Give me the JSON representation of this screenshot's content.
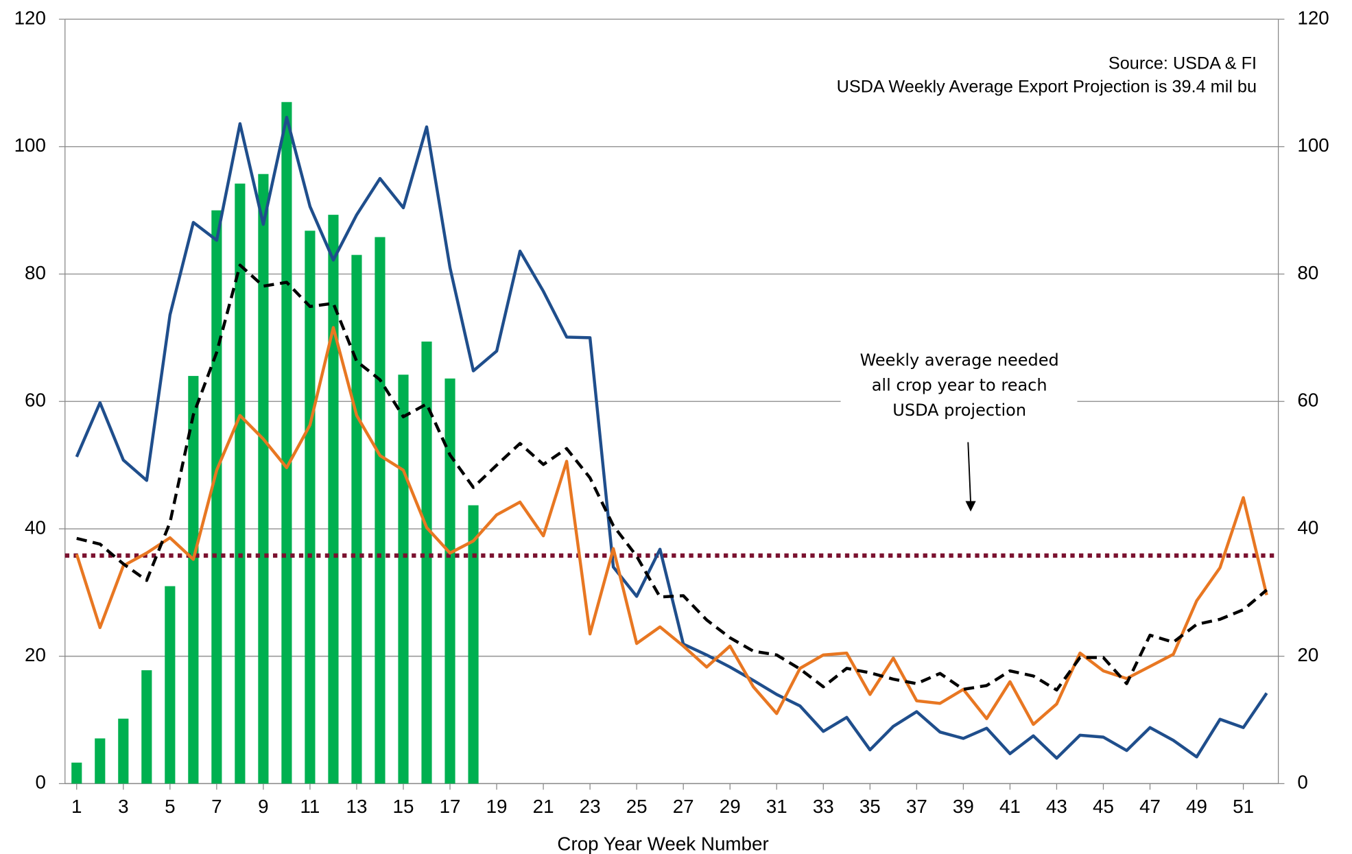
{
  "chart_data": {
    "type": "combo",
    "x_axis_label": "Crop Year Week Number",
    "source": "Source: USDA & FI",
    "note": "USDA Weekly Average Export Projection is 39.4 mil bu",
    "annotation_lines": [
      "Weekly average needed",
      "all crop year to reach",
      "USDA projection"
    ],
    "xlim": [
      0.5,
      52.5
    ],
    "xticks": [
      1,
      3,
      5,
      7,
      9,
      11,
      13,
      15,
      17,
      19,
      21,
      23,
      25,
      27,
      29,
      31,
      33,
      35,
      37,
      39,
      41,
      43,
      45,
      47,
      49,
      51
    ],
    "ylim": [
      0,
      120
    ],
    "yticks": [
      0,
      20,
      40,
      60,
      80,
      100,
      120
    ],
    "y2lim": [
      0,
      120
    ],
    "y2ticks": [
      0,
      20,
      40,
      60,
      80,
      100,
      120
    ],
    "grid": true,
    "reference_line": {
      "value": 35.8,
      "color": "#7b1230"
    },
    "series": [
      {
        "type": "bar",
        "color": "#00b050",
        "x": [
          1,
          2,
          3,
          4,
          5,
          6,
          7,
          8,
          9,
          10,
          11,
          12,
          13,
          14,
          15,
          16,
          17,
          18
        ],
        "values": [
          3.3,
          7.1,
          10.2,
          17.8,
          31,
          64,
          90,
          94.2,
          95.7,
          107,
          86.8,
          89.3,
          83,
          85.8,
          64.2,
          69.4,
          63.6,
          43.7
        ]
      },
      {
        "type": "line",
        "color": "#1f4e8c",
        "x": [
          1,
          2,
          3,
          4,
          5,
          6,
          7,
          8,
          9,
          10,
          11,
          12,
          13,
          14,
          15,
          16,
          17,
          18,
          19,
          20,
          21,
          22,
          23,
          24,
          25,
          26,
          27,
          28,
          29,
          30,
          31,
          32,
          33,
          34,
          35,
          36,
          37,
          38,
          39,
          40,
          41,
          42,
          43,
          44,
          45,
          46,
          47,
          48,
          49,
          50,
          51,
          52
        ],
        "values": [
          51.3,
          59.8,
          50.8,
          47.6,
          73.6,
          88.1,
          85.3,
          103.6,
          87.8,
          104.6,
          90.6,
          82.2,
          89.3,
          95,
          90.4,
          103.1,
          81,
          64.8,
          67.9,
          83.6,
          77.3,
          70.1,
          70,
          34,
          29.4,
          36.8,
          21.9,
          20.2,
          18.3,
          16.2,
          14,
          12.2,
          8.2,
          10.4,
          5.3,
          9,
          11.3,
          8.1,
          7.1,
          8.7,
          4.7,
          7.5,
          4,
          7.6,
          7.3,
          5.2,
          8.8,
          6.8,
          4.2,
          10.1,
          8.8,
          14.2
        ]
      },
      {
        "type": "line",
        "color": "#e87722",
        "x": [
          1,
          2,
          3,
          4,
          5,
          6,
          7,
          8,
          9,
          10,
          11,
          12,
          13,
          14,
          15,
          16,
          17,
          18,
          19,
          20,
          21,
          22,
          23,
          24,
          25,
          26,
          27,
          28,
          29,
          30,
          31,
          32,
          33,
          34,
          35,
          36,
          37,
          38,
          39,
          40,
          41,
          42,
          43,
          44,
          45,
          46,
          47,
          48,
          49,
          50,
          51,
          52
        ],
        "values": [
          36,
          24.5,
          34.2,
          36.2,
          38.6,
          35.2,
          49.2,
          57.8,
          54.1,
          49.6,
          56.3,
          71.6,
          57.8,
          51.5,
          49.2,
          40.2,
          36.2,
          38.1,
          42.2,
          44.2,
          38.9,
          50.6,
          23.5,
          36.9,
          22,
          24.6,
          21.6,
          18.3,
          21.6,
          15.2,
          11,
          18.1,
          20.2,
          20.5,
          14,
          19.7,
          13,
          12.6,
          14.8,
          10.2,
          16,
          9.3,
          12.5,
          20.5,
          17.7,
          16.5,
          18.4,
          20.3,
          28.7,
          33.9,
          44.9,
          29.6
        ]
      },
      {
        "type": "dashed-line",
        "color": "#000000",
        "x": [
          1,
          2,
          3,
          4,
          5,
          6,
          7,
          8,
          9,
          10,
          11,
          12,
          13,
          14,
          15,
          16,
          17,
          18,
          19,
          20,
          21,
          22,
          23,
          24,
          25,
          26,
          27,
          28,
          29,
          30,
          31,
          32,
          33,
          34,
          35,
          36,
          37,
          38,
          39,
          40,
          41,
          42,
          43,
          44,
          45,
          46,
          47,
          48,
          49,
          50,
          51,
          52
        ],
        "values": [
          38.5,
          37.6,
          34.5,
          31.9,
          41,
          57.9,
          67.7,
          81.4,
          78.1,
          78.7,
          74.9,
          75.4,
          66.3,
          63.4,
          57.6,
          59.6,
          51.6,
          46.5,
          50,
          53.4,
          50.1,
          52.6,
          48,
          40.5,
          35.7,
          29.3,
          29.5,
          25.7,
          22.9,
          20.8,
          20.2,
          18,
          15.2,
          18.1,
          17.4,
          16.4,
          15.7,
          17.3,
          14.8,
          15.4,
          17.7,
          16.9,
          14.7,
          19.8,
          19.8,
          15.7,
          23.3,
          22.2,
          25,
          25.8,
          27.3,
          30.4
        ]
      }
    ]
  }
}
